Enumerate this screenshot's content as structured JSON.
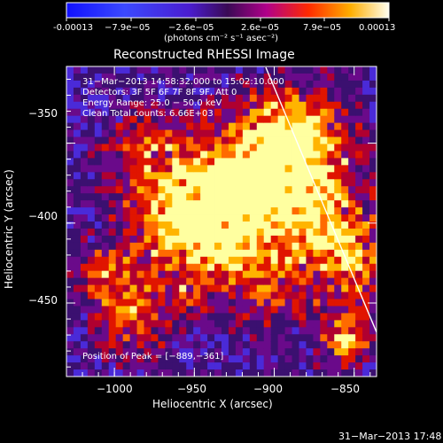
{
  "colorbar": {
    "tick_labels": [
      "-0.00013",
      "−7.9e−05",
      "−2.6e−05",
      "2.6e−05",
      "7.9e−05",
      "0.00013"
    ],
    "units_label": "(photons cm⁻² s⁻¹ asec⁻²)"
  },
  "plot": {
    "title": "Reconstructed RHESSI Image",
    "xlabel": "Heliocentric X (arcsec)",
    "ylabel": "Heliocentric Y (arcsec)",
    "x_ticks": [
      "−1000",
      "−950",
      "−900",
      "−850"
    ],
    "y_ticks": [
      "−350",
      "−400",
      "−450"
    ],
    "x_range": [
      -1030,
      -836
    ],
    "y_range": [
      -496,
      -302
    ],
    "annotations": {
      "time": "31−Mar−2013 14:58:32.000 to 15:02:10.000",
      "detectors": "Detectors: 3F 5F 6F 7F 8F 9F, Att 0",
      "energy": "Energy Range: 25.0 − 50.0 keV",
      "clean": "Clean     Total counts: 6.66E+03",
      "peak": "Position of Peak = [−889,−361]"
    }
  },
  "footer": {
    "timestamp": "31−Mar−2013 17:48"
  },
  "colors": {
    "background": "#000000",
    "text": "#ffffff",
    "limb": "#ffffff"
  }
}
